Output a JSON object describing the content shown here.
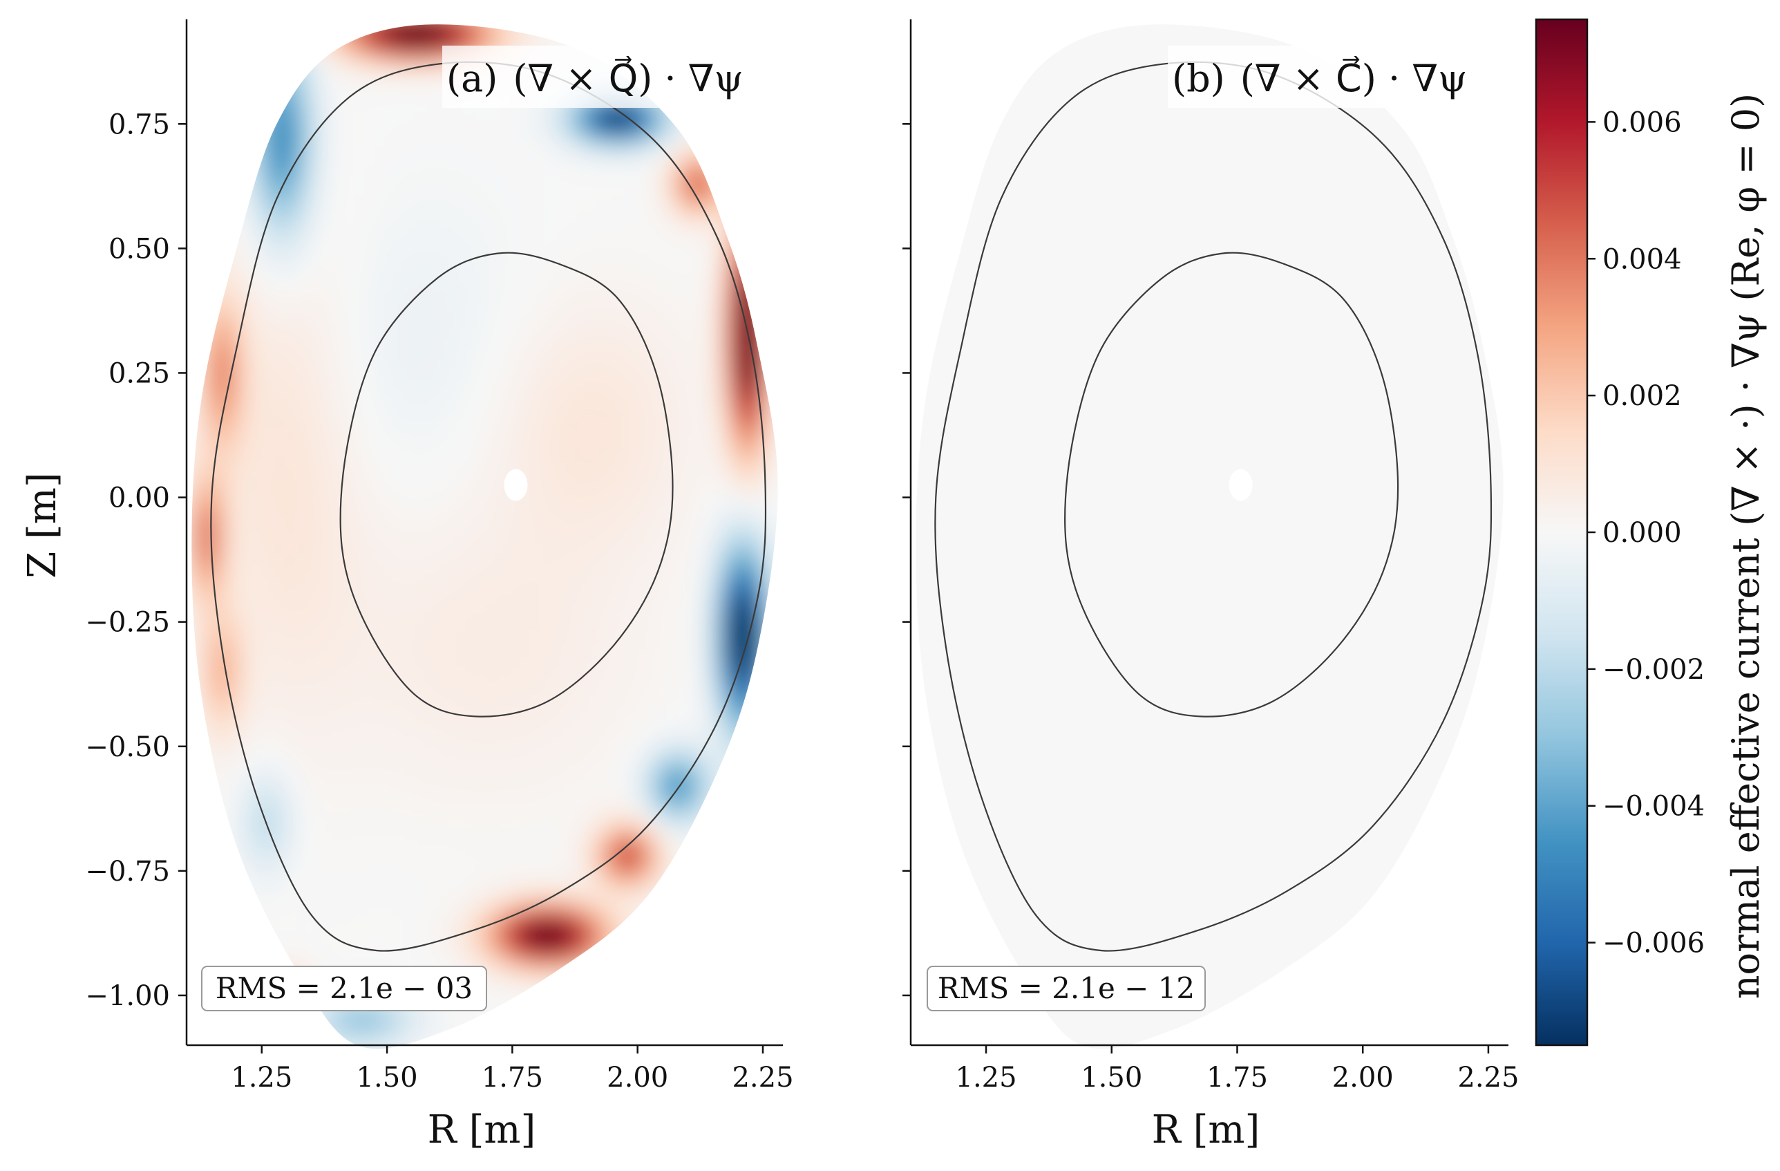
{
  "chart_data": [
    {
      "type": "heatmap",
      "panel": "(a)",
      "title": "(∇ × Q⃗) · ∇ψ",
      "xlabel": "R [m]",
      "ylabel": "Z [m]",
      "xlim": [
        1.1,
        2.29
      ],
      "ylim": [
        -1.1,
        0.96
      ],
      "x_ticks": [
        {
          "value": 1.25,
          "label": "1.25"
        },
        {
          "value": 1.5,
          "label": "1.50"
        },
        {
          "value": 1.75,
          "label": "1.75"
        },
        {
          "value": 2.0,
          "label": "2.00"
        },
        {
          "value": 2.25,
          "label": "2.25"
        }
      ],
      "y_ticks": [
        {
          "value": 0.75,
          "label": "0.75"
        },
        {
          "value": 0.5,
          "label": "0.50"
        },
        {
          "value": 0.25,
          "label": "0.25"
        },
        {
          "value": 0.0,
          "label": "0.00"
        },
        {
          "value": -0.25,
          "label": "−0.25"
        },
        {
          "value": -0.5,
          "label": "−0.50"
        },
        {
          "value": -0.75,
          "label": "−0.75"
        },
        {
          "value": -1.0,
          "label": "−1.00"
        }
      ],
      "annotation": "RMS = 2.1e − 03",
      "rms": 0.0021,
      "boundary": [
        [
          2.28,
          0.02
        ],
        [
          2.24,
          0.3
        ],
        [
          2.18,
          0.52
        ],
        [
          2.08,
          0.74
        ],
        [
          1.88,
          0.9
        ],
        [
          1.6,
          0.95
        ],
        [
          1.4,
          0.9
        ],
        [
          1.28,
          0.75
        ],
        [
          1.2,
          0.5
        ],
        [
          1.13,
          0.2
        ],
        [
          1.11,
          -0.1
        ],
        [
          1.13,
          -0.4
        ],
        [
          1.2,
          -0.7
        ],
        [
          1.32,
          -0.95
        ],
        [
          1.44,
          -1.1
        ],
        [
          1.62,
          -1.07
        ],
        [
          1.84,
          -0.95
        ],
        [
          2.02,
          -0.8
        ],
        [
          2.16,
          -0.55
        ],
        [
          2.24,
          -0.3
        ]
      ],
      "contours": [
        [
          [
            2.255,
            0.02
          ],
          [
            2.23,
            0.28
          ],
          [
            2.16,
            0.52
          ],
          [
            2.03,
            0.72
          ],
          [
            1.82,
            0.85
          ],
          [
            1.6,
            0.87
          ],
          [
            1.42,
            0.8
          ],
          [
            1.28,
            0.6
          ],
          [
            1.2,
            0.3
          ],
          [
            1.15,
            0.0
          ],
          [
            1.17,
            -0.3
          ],
          [
            1.24,
            -0.6
          ],
          [
            1.35,
            -0.84
          ],
          [
            1.48,
            -0.91
          ],
          [
            1.67,
            -0.87
          ],
          [
            1.85,
            -0.79
          ],
          [
            2.02,
            -0.66
          ],
          [
            2.16,
            -0.45
          ],
          [
            2.24,
            -0.2
          ]
        ],
        [
          [
            2.07,
            0.02
          ],
          [
            2.04,
            0.24
          ],
          [
            1.96,
            0.4
          ],
          [
            1.84,
            0.47
          ],
          [
            1.72,
            0.49
          ],
          [
            1.6,
            0.44
          ],
          [
            1.48,
            0.3
          ],
          [
            1.42,
            0.1
          ],
          [
            1.41,
            -0.1
          ],
          [
            1.46,
            -0.26
          ],
          [
            1.56,
            -0.4
          ],
          [
            1.68,
            -0.44
          ],
          [
            1.82,
            -0.41
          ],
          [
            1.95,
            -0.3
          ],
          [
            2.04,
            -0.15
          ]
        ]
      ]
    },
    {
      "type": "heatmap",
      "panel": "(b)",
      "title": "(∇ × C⃗) · ∇ψ",
      "xlabel": "R [m]",
      "xlim": [
        1.1,
        2.29
      ],
      "ylim": [
        -1.1,
        0.96
      ],
      "x_ticks": [
        {
          "value": 1.25,
          "label": "1.25"
        },
        {
          "value": 1.5,
          "label": "1.50"
        },
        {
          "value": 1.75,
          "label": "1.75"
        },
        {
          "value": 2.0,
          "label": "2.00"
        },
        {
          "value": 2.25,
          "label": "2.25"
        }
      ],
      "annotation": "RMS = 2.1e − 12",
      "rms": 2.1e-12
    }
  ],
  "colorbar": {
    "label": "normal effective current (∇ × ·) · ∇ψ (Re, φ = 0)",
    "vmin": -0.0075,
    "vmax": 0.0075,
    "colormap": "RdBu_r",
    "colors": [
      "#053061",
      "#2166ac",
      "#4393c3",
      "#92c5de",
      "#d1e5f0",
      "#f7f7f7",
      "#fddbc7",
      "#f4a582",
      "#d6604d",
      "#b2182b",
      "#67001f"
    ],
    "ticks": [
      {
        "value": 0.006,
        "label": "0.006"
      },
      {
        "value": 0.004,
        "label": "0.004"
      },
      {
        "value": 0.002,
        "label": "0.002"
      },
      {
        "value": 0.0,
        "label": "0.000"
      },
      {
        "value": -0.002,
        "label": "−0.002"
      },
      {
        "value": -0.004,
        "label": "−0.004"
      },
      {
        "value": -0.006,
        "label": "−0.006"
      }
    ]
  }
}
